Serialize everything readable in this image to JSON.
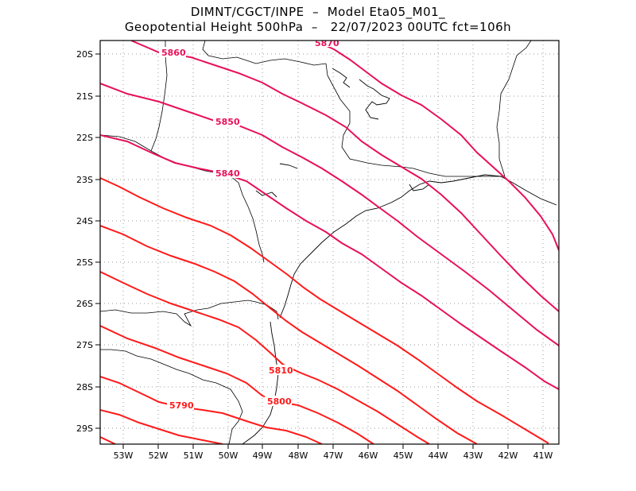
{
  "title": {
    "line1": "DIMNT/CGCT/INPE  –  Model Eta05_M01_",
    "line2": "Geopotential Height 500hPa  –   22/07/2023 00UTC fct=106h"
  },
  "axes": {
    "lat_labels": [
      "20S",
      "21S",
      "22S",
      "23S",
      "24S",
      "25S",
      "26S",
      "27S",
      "28S",
      "29S"
    ],
    "lon_labels": [
      "53W",
      "52W",
      "51W",
      "50W",
      "49W",
      "48W",
      "47W",
      "46W",
      "45W",
      "44W",
      "43W",
      "42W",
      "41W"
    ]
  },
  "colors": {
    "contour_magenta": "#e8105a",
    "contour_red": "#ff1a1a",
    "coast": "#000000",
    "grid": "#999999"
  },
  "contours": {
    "labels": [
      {
        "text": "5870",
        "color": "#e8105a"
      },
      {
        "text": "5860",
        "color": "#e8105a"
      },
      {
        "text": "5850",
        "color": "#e8105a"
      },
      {
        "text": "5840",
        "color": "#e8105a"
      },
      {
        "text": "5810",
        "color": "#ff1a1a"
      },
      {
        "text": "5800",
        "color": "#ff1a1a"
      },
      {
        "text": "5790",
        "color": "#ff1a1a"
      }
    ]
  }
}
